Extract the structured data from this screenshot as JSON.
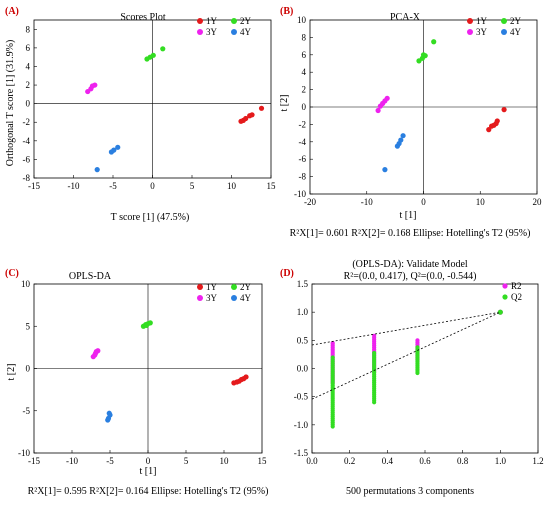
{
  "figure": {
    "panelA": {
      "label": "(A)",
      "title": "Scores Plot",
      "xlabel": "T score [1] (47.5%)",
      "ylabel": "Orthogonal T score [1] (31.9%)"
    },
    "panelB": {
      "label": "(B)",
      "title": "PCA-X",
      "xlabel": "t [1]",
      "ylabel": "t [2]",
      "caption": "R²X[1]= 0.601  R²X[2]= 0.168  Ellipse: Hotelling's T2 (95%)"
    },
    "panelC": {
      "label": "(C)",
      "title": "OPLS-DA",
      "xlabel": "t [1]",
      "ylabel": "t [2]",
      "caption": "R²X[1]= 0.595  R²X[2]= 0.164  Ellipse: Hotelling's T2 (95%)"
    },
    "panelD": {
      "label": "(D)",
      "title_line1": "(OPLS-DA): Validate Model",
      "title_line2": "R²=(0.0, 0.417), Q²=(0.0, -0.544)",
      "caption": "500 permutations 3 components"
    }
  },
  "colors": {
    "1Y": "#e41a1c",
    "2Y": "#33dd22",
    "3Y": "#ee22ee",
    "4Y": "#2a7fe0",
    "R2": "#ee22ee",
    "Q2": "#33dd22"
  },
  "chart_data": [
    {
      "type": "scatter",
      "id": "A",
      "title": "Scores Plot",
      "xlabel": "T score [1] (47.5%)",
      "ylabel": "Orthogonal T score [1] (31.9%)",
      "xlim": [
        -15,
        15
      ],
      "ylim": [
        -8,
        9
      ],
      "xticks": [
        -15,
        -10,
        -5,
        0,
        5,
        10,
        15
      ],
      "yticks": [
        -8,
        -6,
        -4,
        -2,
        0,
        2,
        4,
        6,
        8
      ],
      "legend": "top-right",
      "series": [
        {
          "name": "1Y",
          "color": "#e41a1c",
          "points": [
            [
              11.2,
              -1.9
            ],
            [
              11.5,
              -1.8
            ],
            [
              11.8,
              -1.6
            ],
            [
              12.3,
              -1.3
            ],
            [
              12.6,
              -1.2
            ],
            [
              13.8,
              -0.5
            ]
          ]
        },
        {
          "name": "2Y",
          "color": "#33dd22",
          "points": [
            [
              -0.7,
              4.8
            ],
            [
              -0.3,
              5.0
            ],
            [
              0.1,
              5.2
            ],
            [
              1.3,
              5.9
            ]
          ]
        },
        {
          "name": "3Y",
          "color": "#ee22ee",
          "points": [
            [
              -8.2,
              1.3
            ],
            [
              -7.8,
              1.6
            ],
            [
              -7.6,
              1.9
            ],
            [
              -7.3,
              2.0
            ]
          ]
        },
        {
          "name": "4Y",
          "color": "#2a7fe0",
          "points": [
            [
              -5.2,
              -5.2
            ],
            [
              -4.9,
              -5.0
            ],
            [
              -4.4,
              -4.7
            ],
            [
              -7.0,
              -7.1
            ]
          ]
        }
      ]
    },
    {
      "type": "scatter",
      "id": "B",
      "title": "PCA-X",
      "xlabel": "t [1]",
      "ylabel": "t [2]",
      "xlim": [
        -20,
        20
      ],
      "ylim": [
        -10,
        10
      ],
      "xticks": [
        -20,
        -10,
        0,
        10,
        20
      ],
      "yticks": [
        -10,
        -8,
        -6,
        -4,
        -2,
        0,
        2,
        4,
        6,
        8,
        10
      ],
      "legend": "top-right",
      "series": [
        {
          "name": "1Y",
          "color": "#e41a1c",
          "points": [
            [
              11.5,
              -2.6
            ],
            [
              12.0,
              -2.2
            ],
            [
              12.4,
              -2.1
            ],
            [
              12.8,
              -1.9
            ],
            [
              13.0,
              -1.6
            ],
            [
              14.2,
              -0.3
            ]
          ]
        },
        {
          "name": "2Y",
          "color": "#33dd22",
          "points": [
            [
              -0.8,
              5.3
            ],
            [
              -0.2,
              5.6
            ],
            [
              0.0,
              6.0
            ],
            [
              0.3,
              5.9
            ],
            [
              1.8,
              7.5
            ]
          ]
        },
        {
          "name": "3Y",
          "color": "#ee22ee",
          "points": [
            [
              -8.0,
              -0.4
            ],
            [
              -7.6,
              0.1
            ],
            [
              -7.2,
              0.4
            ],
            [
              -6.8,
              0.7
            ],
            [
              -6.4,
              1.0
            ]
          ]
        },
        {
          "name": "4Y",
          "color": "#2a7fe0",
          "points": [
            [
              -4.6,
              -4.5
            ],
            [
              -4.3,
              -4.2
            ],
            [
              -4.0,
              -3.8
            ],
            [
              -3.6,
              -3.3
            ],
            [
              -6.8,
              -7.2
            ]
          ]
        }
      ]
    },
    {
      "type": "scatter",
      "id": "C",
      "title": "OPLS-DA",
      "xlabel": "t [1]",
      "ylabel": "t [2]",
      "xlim": [
        -15,
        15
      ],
      "ylim": [
        -10,
        10
      ],
      "xticks": [
        -15,
        -10,
        -5,
        0,
        5,
        10,
        15
      ],
      "yticks": [
        -10,
        -5,
        0,
        5,
        10
      ],
      "legend": "top-right",
      "series": [
        {
          "name": "1Y",
          "color": "#e41a1c",
          "points": [
            [
              11.3,
              -1.7
            ],
            [
              11.7,
              -1.6
            ],
            [
              12.0,
              -1.5
            ],
            [
              12.3,
              -1.3
            ],
            [
              12.6,
              -1.2
            ],
            [
              12.9,
              -1.0
            ]
          ]
        },
        {
          "name": "2Y",
          "color": "#33dd22",
          "points": [
            [
              -0.6,
              5.0
            ],
            [
              -0.3,
              5.2
            ],
            [
              0.0,
              5.3
            ],
            [
              0.3,
              5.4
            ],
            [
              -0.2,
              5.1
            ]
          ]
        },
        {
          "name": "3Y",
          "color": "#ee22ee",
          "points": [
            [
              -7.2,
              1.4
            ],
            [
              -7.0,
              1.6
            ],
            [
              -6.9,
              1.8
            ],
            [
              -6.8,
              2.0
            ],
            [
              -6.6,
              2.1
            ]
          ]
        },
        {
          "name": "4Y",
          "color": "#2a7fe0",
          "points": [
            [
              -5.1,
              -5.3
            ],
            [
              -5.0,
              -5.5
            ],
            [
              -5.2,
              -5.9
            ],
            [
              -5.3,
              -6.1
            ]
          ]
        }
      ]
    },
    {
      "type": "scatter",
      "id": "D",
      "title": "(OPLS-DA): Validate Model",
      "subtitle": "R²=(0.0, 0.417), Q²=(0.0, -0.544)",
      "xlim": [
        0,
        1.2
      ],
      "ylim": [
        -1.5,
        1.5
      ],
      "xticks": [
        0,
        0.2,
        0.4,
        0.6,
        0.8,
        1.0,
        1.2
      ],
      "yticks": [
        -1.5,
        -1.0,
        -0.5,
        0.0,
        0.5,
        1.0,
        1.5
      ],
      "legend": "top-right",
      "columns_x": [
        0.11,
        0.33,
        0.56
      ],
      "series": [
        {
          "name": "R2",
          "color": "#ee22ee",
          "columns": [
            {
              "x": 0.11,
              "min": -0.25,
              "max": 0.45
            },
            {
              "x": 0.33,
              "min": -0.05,
              "max": 0.6
            },
            {
              "x": 0.56,
              "min": 0.15,
              "max": 0.5
            }
          ],
          "final": [
            1.0,
            1.0
          ],
          "regression_line": [
            [
              0.0,
              0.417
            ],
            [
              1.0,
              1.0
            ]
          ]
        },
        {
          "name": "Q2",
          "color": "#33dd22",
          "columns": [
            {
              "x": 0.11,
              "min": -1.03,
              "max": 0.22
            },
            {
              "x": 0.33,
              "min": -0.6,
              "max": 0.3
            },
            {
              "x": 0.56,
              "min": -0.08,
              "max": 0.38
            }
          ],
          "final": [
            1.0,
            1.0
          ],
          "regression_line": [
            [
              0.0,
              -0.544
            ],
            [
              1.0,
              1.0
            ]
          ]
        }
      ]
    }
  ]
}
